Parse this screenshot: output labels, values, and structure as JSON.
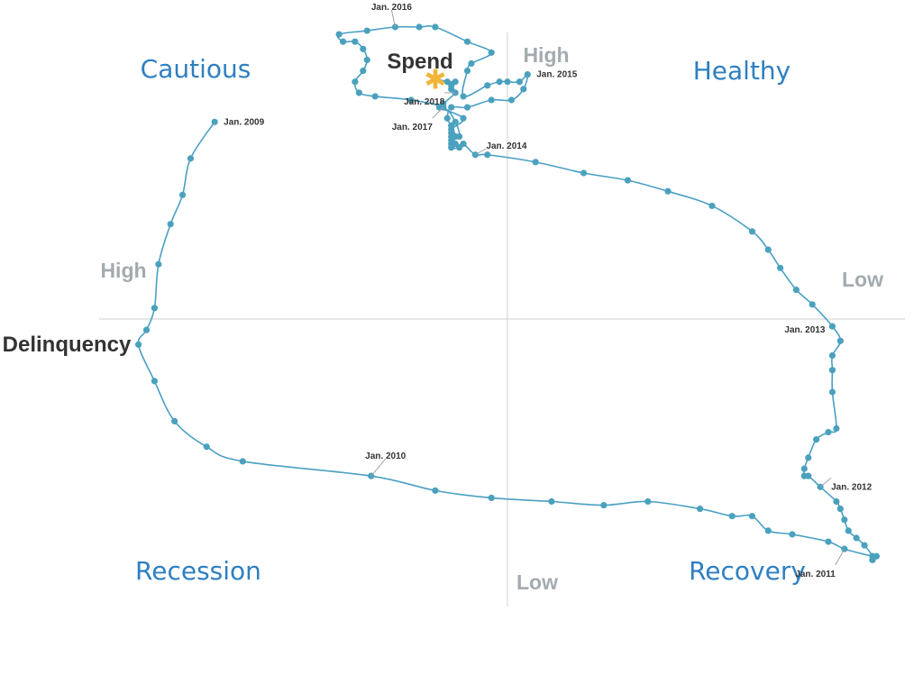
{
  "chart_data": {
    "type": "line",
    "title": "",
    "x_axis": {
      "label": "Delinquency",
      "left_end": "High",
      "right_end": "Low"
    },
    "y_axis": {
      "label": "Spend",
      "top_end": "High",
      "bottom_end": "Low"
    },
    "quadrants": {
      "top_left": "Cautious",
      "top_right": "Healthy",
      "bottom_left": "Recession",
      "bottom_right": "Recovery"
    },
    "annotations": [
      {
        "text": "Jan. 2009",
        "point_index": 0
      },
      {
        "text": "Jan. 2010",
        "point_index": 12
      },
      {
        "text": "Jan. 2011",
        "point_index": 24
      },
      {
        "text": "Jan. 2012",
        "point_index": 36
      },
      {
        "text": "Jan. 2013",
        "point_index": 48
      },
      {
        "text": "Jan. 2014",
        "point_index": 60
      },
      {
        "text": "Jan. 2015",
        "point_index": 72
      },
      {
        "text": "Jan. 2016",
        "point_index": 84
      },
      {
        "text": "Jan. 2017",
        "point_index": 96
      },
      {
        "text": "Jan. 2018",
        "point_index": 108
      }
    ],
    "series": [
      {
        "color": "#4a9fc4",
        "marker_color": "#4aa1be",
        "latest_marker_color": "#f2b53a",
        "points": [
          [
            -0.73,
            0.54
          ],
          [
            -0.79,
            0.44
          ],
          [
            -0.81,
            0.34
          ],
          [
            -0.84,
            0.26
          ],
          [
            -0.87,
            0.15
          ],
          [
            -0.88,
            0.03
          ],
          [
            -0.9,
            -0.03
          ],
          [
            -0.92,
            -0.07
          ],
          [
            -0.88,
            -0.17
          ],
          [
            -0.83,
            -0.28
          ],
          [
            -0.75,
            -0.35
          ],
          [
            -0.66,
            -0.39
          ],
          [
            -0.34,
            -0.43
          ],
          [
            -0.18,
            -0.47
          ],
          [
            -0.04,
            -0.49
          ],
          [
            0.11,
            -0.5
          ],
          [
            0.24,
            -0.51
          ],
          [
            0.35,
            -0.5
          ],
          [
            0.48,
            -0.52
          ],
          [
            0.56,
            -0.54
          ],
          [
            0.61,
            -0.54
          ],
          [
            0.65,
            -0.58
          ],
          [
            0.71,
            -0.59
          ],
          [
            0.8,
            -0.61
          ],
          [
            0.84,
            -0.63
          ],
          [
            0.91,
            -0.65
          ],
          [
            0.92,
            -0.65
          ],
          [
            0.91,
            -0.66
          ],
          [
            0.91,
            -0.66
          ],
          [
            0.91,
            -0.65
          ],
          [
            0.89,
            -0.62
          ],
          [
            0.87,
            -0.6
          ],
          [
            0.85,
            -0.58
          ],
          [
            0.84,
            -0.55
          ],
          [
            0.83,
            -0.52
          ],
          [
            0.82,
            -0.5
          ],
          [
            0.78,
            -0.46
          ],
          [
            0.75,
            -0.43
          ],
          [
            0.74,
            -0.43
          ],
          [
            0.74,
            -0.41
          ],
          [
            0.75,
            -0.38
          ],
          [
            0.77,
            -0.33
          ],
          [
            0.8,
            -0.31
          ],
          [
            0.82,
            -0.3
          ],
          [
            0.81,
            -0.2
          ],
          [
            0.81,
            -0.14
          ],
          [
            0.81,
            -0.1
          ],
          [
            0.83,
            -0.06
          ],
          [
            0.81,
            -0.02
          ],
          [
            0.76,
            0.04
          ],
          [
            0.72,
            0.08
          ],
          [
            0.68,
            0.14
          ],
          [
            0.65,
            0.19
          ],
          [
            0.61,
            0.24
          ],
          [
            0.51,
            0.31
          ],
          [
            0.4,
            0.35
          ],
          [
            0.3,
            0.38
          ],
          [
            0.19,
            0.4
          ],
          [
            0.07,
            0.43
          ],
          [
            -0.05,
            0.45
          ],
          [
            -0.08,
            0.45
          ],
          [
            -0.11,
            0.48
          ],
          [
            -0.12,
            0.47
          ],
          [
            -0.14,
            0.47
          ],
          [
            -0.13,
            0.5
          ],
          [
            -0.14,
            0.53
          ],
          [
            -0.15,
            0.55
          ],
          [
            -0.14,
            0.58
          ],
          [
            -0.1,
            0.58
          ],
          [
            -0.04,
            0.6
          ],
          [
            0.01,
            0.6
          ],
          [
            0.04,
            0.63
          ],
          [
            0.05,
            0.67
          ],
          [
            0.03,
            0.65
          ],
          [
            0.0,
            0.65
          ],
          [
            -0.02,
            0.65
          ],
          [
            -0.05,
            0.64
          ],
          [
            -0.11,
            0.61
          ],
          [
            -0.1,
            0.68
          ],
          [
            -0.09,
            0.7
          ],
          [
            -0.04,
            0.73
          ],
          [
            -0.1,
            0.76
          ],
          [
            -0.18,
            0.8
          ],
          [
            -0.22,
            0.8
          ],
          [
            -0.28,
            0.8
          ],
          [
            -0.35,
            0.79
          ],
          [
            -0.42,
            0.78
          ],
          [
            -0.41,
            0.76
          ],
          [
            -0.38,
            0.76
          ],
          [
            -0.36,
            0.74
          ],
          [
            -0.35,
            0.71
          ],
          [
            -0.36,
            0.68
          ],
          [
            -0.38,
            0.65
          ],
          [
            -0.37,
            0.62
          ],
          [
            -0.33,
            0.61
          ],
          [
            -0.24,
            0.6
          ],
          [
            -0.16,
            0.58
          ],
          [
            -0.13,
            0.54
          ],
          [
            -0.12,
            0.5
          ],
          [
            -0.14,
            0.49
          ],
          [
            -0.14,
            0.48
          ],
          [
            -0.13,
            0.48
          ],
          [
            -0.14,
            0.5
          ],
          [
            -0.14,
            0.51
          ],
          [
            -0.14,
            0.52
          ],
          [
            -0.11,
            0.55
          ],
          [
            -0.17,
            0.58
          ],
          [
            -0.16,
            0.59
          ],
          [
            -0.13,
            0.62
          ],
          [
            -0.14,
            0.63
          ],
          [
            -0.14,
            0.64
          ],
          [
            -0.13,
            0.65
          ],
          [
            -0.15,
            0.65
          ],
          [
            -0.18,
            0.66
          ]
        ]
      }
    ]
  }
}
